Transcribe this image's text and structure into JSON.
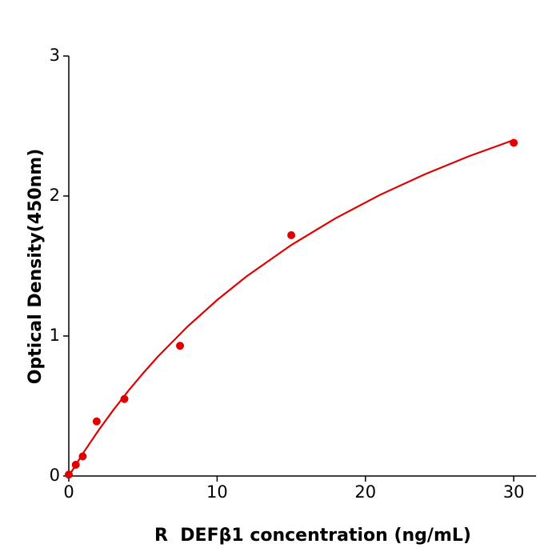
{
  "chart_data": {
    "type": "scatter",
    "xlabel": "R  DEFβ1 concentration (ng/mL)",
    "ylabel": "Optical Density(450nm)",
    "xlim": [
      0,
      31.5
    ],
    "ylim": [
      0,
      3
    ],
    "xticks": [
      0,
      10,
      20,
      30
    ],
    "yticks": [
      0,
      1,
      2,
      3
    ],
    "series": [
      {
        "mode": "markers",
        "color": "#e00000",
        "x": [
          0,
          0.47,
          0.94,
          1.88,
          3.75,
          7.5,
          15,
          30
        ],
        "values": [
          0.01,
          0.08,
          0.14,
          0.39,
          0.55,
          0.93,
          1.72,
          2.38
        ]
      },
      {
        "mode": "line",
        "color": "#e00000",
        "x": [
          0,
          1,
          2,
          3,
          4,
          5,
          6,
          8,
          10,
          12,
          15,
          18,
          21,
          24,
          27,
          30
        ],
        "values": [
          0,
          0.169,
          0.326,
          0.471,
          0.607,
          0.733,
          0.852,
          1.067,
          1.257,
          1.427,
          1.65,
          1.842,
          2.009,
          2.155,
          2.285,
          2.4
        ]
      }
    ]
  }
}
